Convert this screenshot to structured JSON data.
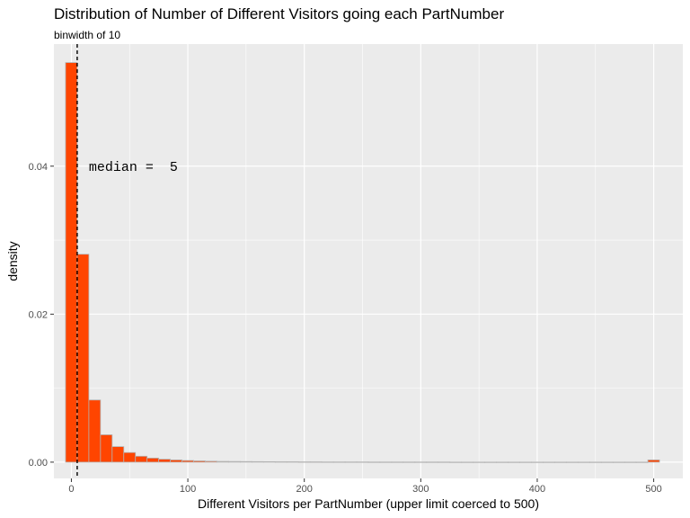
{
  "chart_data": {
    "type": "bar",
    "title": "Distribution of Number of Different Visitors going each PartNumber",
    "subtitle": "binwidth of 10",
    "xlabel": "Different Visitors per PartNumber (upper limit coerced to 500)",
    "ylabel": "density",
    "xlim": [
      -15,
      525
    ],
    "ylim": [
      -0.0022,
      0.0565
    ],
    "x_ticks": [
      0,
      100,
      200,
      300,
      400,
      500
    ],
    "x_tick_labels": [
      "0",
      "100",
      "200",
      "300",
      "400",
      "500"
    ],
    "y_ticks": [
      0.0,
      0.02,
      0.04
    ],
    "y_tick_labels": [
      "0.00",
      "0.02",
      "0.04"
    ],
    "binwidth": 10,
    "bin_centers": [
      0,
      10,
      20,
      30,
      40,
      50,
      60,
      70,
      80,
      90,
      100,
      110,
      120,
      130,
      140,
      150,
      160,
      170,
      180,
      190,
      200,
      210,
      220,
      230,
      240,
      250,
      260,
      270,
      280,
      290,
      300,
      310,
      320,
      330,
      340,
      350,
      360,
      370,
      380,
      390,
      400,
      410,
      420,
      430,
      440,
      450,
      460,
      470,
      480,
      490,
      500
    ],
    "values": [
      0.054,
      0.0281,
      0.0084,
      0.0037,
      0.0021,
      0.0013,
      0.0008,
      0.00055,
      0.0004,
      0.0003,
      0.00022,
      0.00017,
      0.00013,
      0.0001,
      9e-05,
      8e-05,
      7e-05,
      6e-05,
      5e-05,
      5e-05,
      4e-05,
      4e-05,
      3e-05,
      3e-05,
      3e-05,
      3e-05,
      2e-05,
      2e-05,
      2e-05,
      2e-05,
      2e-05,
      2e-05,
      2e-05,
      1e-05,
      1e-05,
      1e-05,
      1e-05,
      1e-05,
      1e-05,
      1e-05,
      1e-05,
      1e-05,
      1e-05,
      1e-05,
      1e-05,
      1e-05,
      1e-05,
      1e-05,
      1e-05,
      1e-05,
      0.0003
    ],
    "median": 5,
    "median_label": "median =  5",
    "median_label_y": 0.04,
    "colors": {
      "bar_fill": "#ff4500",
      "bar_outline": "#b3b3b3",
      "panel_bg": "#ebebeb",
      "grid_major": "#ffffff",
      "median_line": "#000000"
    },
    "grid": true
  }
}
